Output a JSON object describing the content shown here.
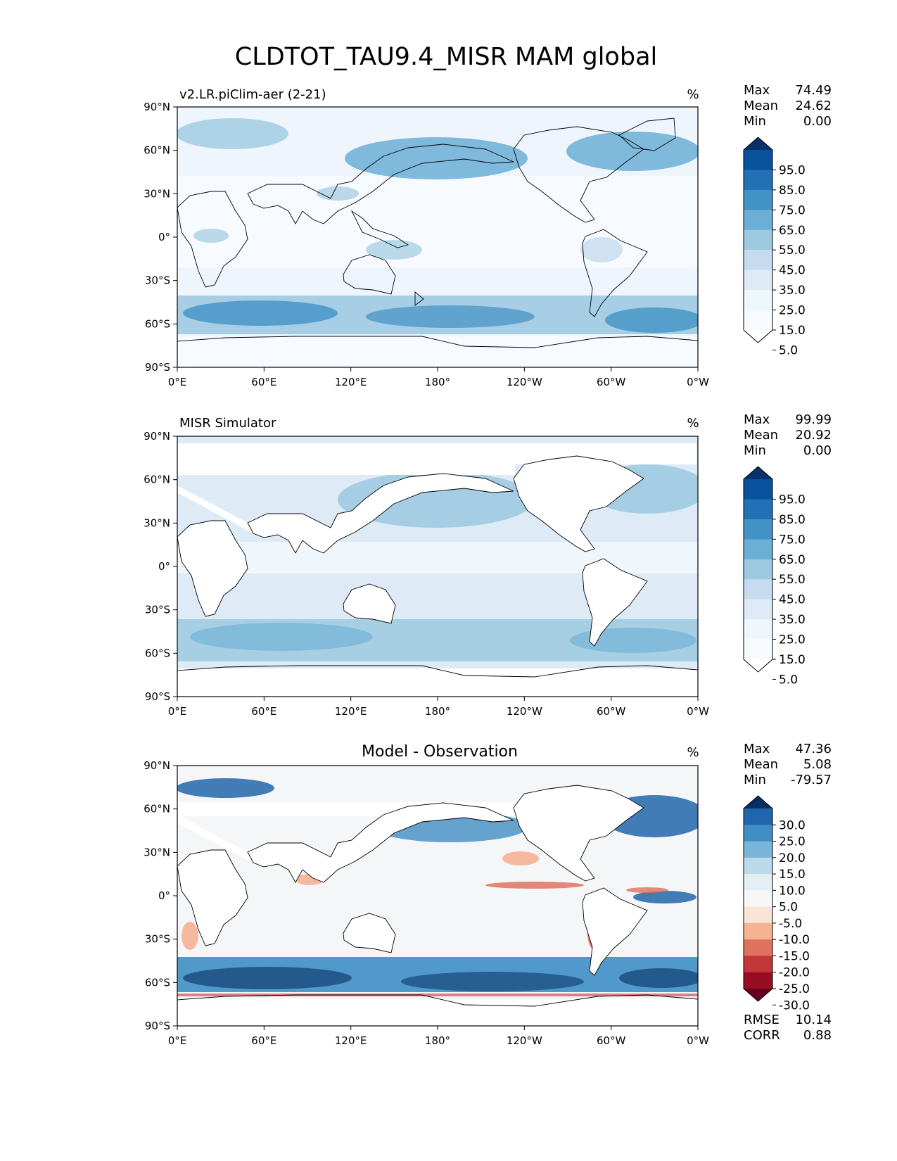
{
  "figure": {
    "title": "CLDTOT_TAU9.4_MISR MAM global"
  },
  "axes": {
    "lat_ticks": [
      "90°N",
      "60°N",
      "30°N",
      "0°",
      "30°S",
      "60°S",
      "90°S"
    ],
    "lon_ticks": [
      "0°E",
      "60°E",
      "120°E",
      "180°",
      "120°W",
      "60°W",
      "0°W"
    ]
  },
  "chart_data": [
    {
      "type": "heatmap",
      "id": "model",
      "subtitle_left": "v2.LR.piClim-aer (2-21)",
      "subtitle_center": "",
      "units": "%",
      "stats": [
        {
          "label": "Max",
          "value": "74.49"
        },
        {
          "label": "Mean",
          "value": "24.62"
        },
        {
          "label": "Min",
          "value": "0.00"
        }
      ],
      "footer_stats": [],
      "colorbar": {
        "labels": [
          "95.0",
          "85.0",
          "75.0",
          "65.0",
          "55.0",
          "45.0",
          "35.0",
          "25.0",
          "15.0",
          "5.0"
        ],
        "colors": [
          "#08306b",
          "#08519c",
          "#2171b5",
          "#4292c6",
          "#6baed6",
          "#9ecae1",
          "#c6dbef",
          "#deebf7",
          "#eff6fc",
          "#f7fbff",
          "#ffffff"
        ]
      }
    },
    {
      "type": "heatmap",
      "id": "obs",
      "subtitle_left": "MISR Simulator",
      "subtitle_center": "",
      "units": "%",
      "stats": [
        {
          "label": "Max",
          "value": "99.99"
        },
        {
          "label": "Mean",
          "value": "20.92"
        },
        {
          "label": "Min",
          "value": "0.00"
        }
      ],
      "footer_stats": [],
      "colorbar": {
        "labels": [
          "95.0",
          "85.0",
          "75.0",
          "65.0",
          "55.0",
          "45.0",
          "35.0",
          "25.0",
          "15.0",
          "5.0"
        ],
        "colors": [
          "#08306b",
          "#08519c",
          "#2171b5",
          "#4292c6",
          "#6baed6",
          "#9ecae1",
          "#c6dbef",
          "#deebf7",
          "#eff6fc",
          "#f7fbff",
          "#ffffff"
        ]
      }
    },
    {
      "type": "heatmap",
      "id": "diff",
      "subtitle_left": "",
      "subtitle_center": "Model - Observation",
      "units": "%",
      "stats": [
        {
          "label": "Max",
          "value": "47.36"
        },
        {
          "label": "Mean",
          "value": "5.08"
        },
        {
          "label": "Min",
          "value": "-79.57"
        }
      ],
      "footer_stats": [
        {
          "label": "RMSE",
          "value": "10.14"
        },
        {
          "label": "CORR",
          "value": "0.88"
        }
      ],
      "colorbar": {
        "labels": [
          "30.0",
          "25.0",
          "20.0",
          "15.0",
          "10.0",
          "5.0",
          "-5.0",
          "-10.0",
          "-15.0",
          "-20.0",
          "-25.0",
          "-30.0"
        ],
        "colors": [
          "#053061",
          "#2166ac",
          "#3f8fc5",
          "#79b5d8",
          "#bcdaea",
          "#e4eef4",
          "#f7f7f7",
          "#fbe3d5",
          "#f6b394",
          "#de725f",
          "#c23639",
          "#980d23",
          "#67001f"
        ]
      }
    }
  ]
}
